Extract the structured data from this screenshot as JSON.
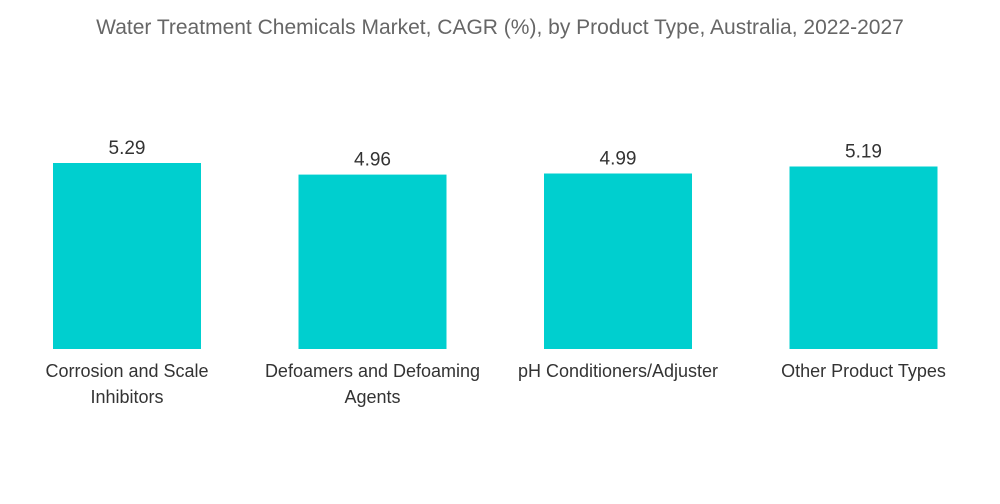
{
  "chart_data": {
    "type": "bar",
    "title": "Water Treatment Chemicals Market, CAGR (%), by Product Type, Australia, 2022-2027",
    "categories": [
      [
        "Corrosion and Scale",
        "Inhibitors"
      ],
      [
        "Defoamers and Defoaming",
        "Agents"
      ],
      [
        "pH Conditioners/Adjuster"
      ],
      [
        "Other Product Types"
      ]
    ],
    "values": [
      5.29,
      4.96,
      4.99,
      5.19
    ],
    "value_labels": [
      "5.29",
      "4.96",
      "4.99",
      "5.19"
    ],
    "xlabel": "",
    "ylabel": "",
    "ylim": [
      0,
      5.29
    ],
    "grid": false,
    "legend": "none",
    "colors": {
      "bar": "#00CFCF",
      "title": "#666666",
      "label": "#333333"
    }
  }
}
